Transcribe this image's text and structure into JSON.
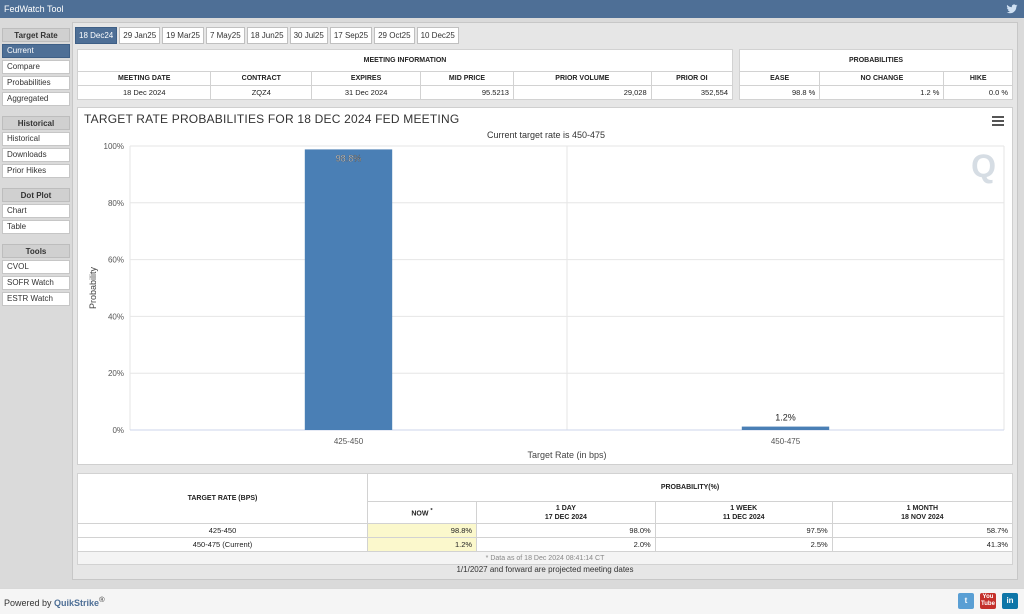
{
  "app": {
    "title": "FedWatch Tool"
  },
  "sidebar": {
    "groups": [
      {
        "title": "Target Rate",
        "items": [
          "Current",
          "Compare",
          "Probabilities",
          "Aggregated"
        ]
      },
      {
        "title": "Historical",
        "items": [
          "Historical",
          "Downloads",
          "Prior Hikes"
        ]
      },
      {
        "title": "Dot Plot",
        "items": [
          "Chart",
          "Table"
        ]
      },
      {
        "title": "Tools",
        "items": [
          "CVOL",
          "SOFR Watch",
          "ESTR Watch"
        ]
      }
    ]
  },
  "tabs": [
    "18 Dec24",
    "29 Jan25",
    "19 Mar25",
    "7 May25",
    "18 Jun25",
    "30 Jul25",
    "17 Sep25",
    "29 Oct25",
    "10 Dec25"
  ],
  "meeting_info": {
    "title": "MEETING INFORMATION",
    "headers": [
      "MEETING DATE",
      "CONTRACT",
      "EXPIRES",
      "MID PRICE",
      "PRIOR VOLUME",
      "PRIOR OI"
    ],
    "values": [
      "18 Dec 2024",
      "ZQZ4",
      "31 Dec 2024",
      "95.5213",
      "29,028",
      "352,554"
    ]
  },
  "probabilities": {
    "title": "PROBABILITIES",
    "headers": [
      "EASE",
      "NO CHANGE",
      "HIKE"
    ],
    "values": [
      "98.8 %",
      "1.2 %",
      "0.0 %"
    ]
  },
  "chart": {
    "title": "TARGET RATE PROBABILITIES FOR 18 DEC 2024 FED MEETING",
    "subtitle": "Current target rate is 450-475",
    "watermark": "Q"
  },
  "chart_data": {
    "type": "bar",
    "categories": [
      "425-450",
      "450-475"
    ],
    "values": [
      98.8,
      1.2
    ],
    "data_labels": [
      "98.8%",
      "1.2%"
    ],
    "xlabel": "Target Rate (in bps)",
    "ylabel": "Probability",
    "ylim": [
      0,
      100
    ],
    "yticks": [
      "0%",
      "20%",
      "40%",
      "60%",
      "80%",
      "100%"
    ],
    "grid": true,
    "bar_color": "#4a7fb5"
  },
  "bottom_table": {
    "col1_header": "TARGET RATE (BPS)",
    "group_header": "PROBABILITY(%)",
    "subheaders": [
      {
        "line1": "NOW",
        "line2": ""
      },
      {
        "line1": "1 DAY",
        "line2": "17 DEC 2024"
      },
      {
        "line1": "1 WEEK",
        "line2": "11 DEC 2024"
      },
      {
        "line1": "1 MONTH",
        "line2": "18 NOV 2024"
      }
    ],
    "now_marker": "*",
    "rows": [
      {
        "rate": "425-450",
        "vals": [
          "98.8%",
          "98.0%",
          "97.5%",
          "58.7%"
        ]
      },
      {
        "rate": "450-475 (Current)",
        "vals": [
          "1.2%",
          "2.0%",
          "2.5%",
          "41.3%"
        ]
      }
    ],
    "note": "* Data as of 18 Dec 2024 08:41:14 CT"
  },
  "footer_note": "1/1/2027 and forward are projected meeting dates",
  "powered": {
    "prefix": "Powered by ",
    "brand": "QuikStrike",
    "mark": "®"
  },
  "social": {
    "twitter": "t",
    "youtube_line1": "You",
    "youtube_line2": "Tube",
    "linkedin": "in"
  },
  "colors": {
    "accent": "#4e6f96",
    "bar": "#4a7fb5",
    "now_highlight": "#fbf8cc"
  }
}
